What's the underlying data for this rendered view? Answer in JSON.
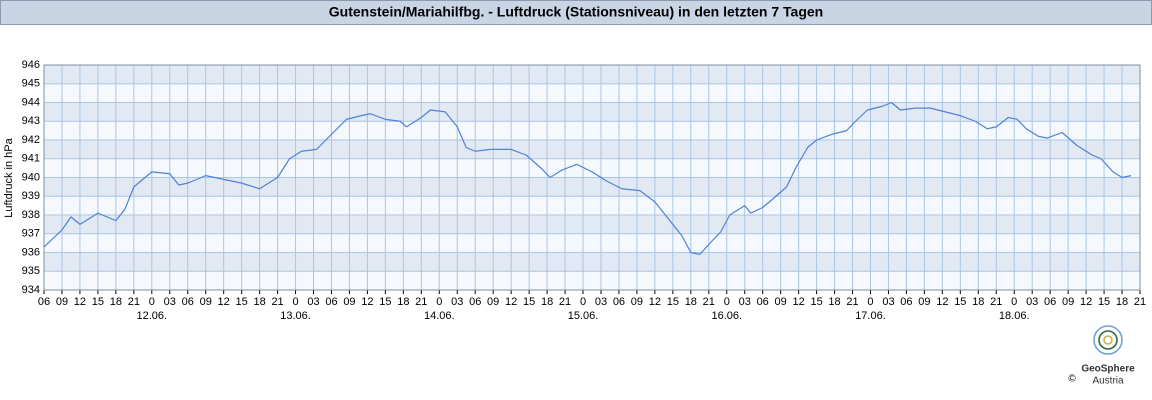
{
  "chart_data": {
    "type": "line",
    "title": "Gutenstein/Mariahilfbg. - Luftdruck (Stationsniveau) in den letzten 7 Tagen",
    "y_label": "Luftdruck in hPa",
    "color": "#4f82d8",
    "grid": true,
    "x": [
      0,
      3,
      4.5,
      6,
      9,
      12,
      13.5,
      15,
      18,
      21,
      22.5,
      24,
      27,
      30,
      33,
      36,
      39,
      41,
      43,
      45.5,
      48,
      50.5,
      53,
      54.5,
      57,
      59.5,
      60.5,
      63,
      64.5,
      67,
      69,
      70.5,
      72,
      74.5,
      78,
      80.5,
      83,
      84.5,
      86.5,
      89,
      91.5,
      94,
      96.5,
      99.5,
      102,
      104.5,
      106.5,
      108,
      109.5,
      111.5,
      113,
      114.5,
      115.5,
      117,
      118,
      120,
      121.5,
      124,
      125.5,
      127.5,
      129,
      131.5,
      134,
      135.5,
      137.5,
      140,
      141.5,
      143,
      145.5,
      148,
      150.5,
      153,
      155.5,
      157.5,
      159,
      161,
      162.5,
      164,
      166,
      167.5,
      170,
      172.5,
      175,
      176.5,
      178.5,
      180,
      181.5
    ],
    "values": [
      936.3,
      937.2,
      937.9,
      937.5,
      938.1,
      937.7,
      938.3,
      939.5,
      940.3,
      940.2,
      939.6,
      939.7,
      940.1,
      939.9,
      939.7,
      939.4,
      940.0,
      941.0,
      941.4,
      941.5,
      942.3,
      943.1,
      943.3,
      943.4,
      943.1,
      943.0,
      942.7,
      943.2,
      943.6,
      943.5,
      942.7,
      941.6,
      941.4,
      941.5,
      941.5,
      941.2,
      940.5,
      940.0,
      940.4,
      940.7,
      940.3,
      939.8,
      939.4,
      939.3,
      938.7,
      937.7,
      936.9,
      936.0,
      935.9,
      936.6,
      937.1,
      938.0,
      938.2,
      938.5,
      938.1,
      938.4,
      938.8,
      939.5,
      940.5,
      941.6,
      942.0,
      942.3,
      942.5,
      943.0,
      943.6,
      943.8,
      944.0,
      943.6,
      943.7,
      943.7,
      943.5,
      943.3,
      943.0,
      942.6,
      942.7,
      943.2,
      943.1,
      942.6,
      942.2,
      942.1,
      942.4,
      941.7,
      941.2,
      941.0,
      940.3,
      940.0,
      940.1
    ],
    "xlim": [
      0,
      183
    ],
    "ylim": [
      934,
      946
    ],
    "yticks": [
      934,
      935,
      936,
      937,
      938,
      939,
      940,
      941,
      942,
      943,
      944,
      945,
      946
    ],
    "xticks": [
      {
        "value": 0,
        "label": "06"
      },
      {
        "value": 3,
        "label": "09"
      },
      {
        "value": 6,
        "label": "12"
      },
      {
        "value": 9,
        "label": "15"
      },
      {
        "value": 12,
        "label": "18"
      },
      {
        "value": 15,
        "label": "21"
      },
      {
        "value": 18,
        "label": "0"
      },
      {
        "value": 21,
        "label": "03"
      },
      {
        "value": 24,
        "label": "06"
      },
      {
        "value": 27,
        "label": "09"
      },
      {
        "value": 30,
        "label": "12"
      },
      {
        "value": 33,
        "label": "15"
      },
      {
        "value": 36,
        "label": "18"
      },
      {
        "value": 39,
        "label": "21"
      },
      {
        "value": 42,
        "label": "0"
      },
      {
        "value": 45,
        "label": "03"
      },
      {
        "value": 48,
        "label": "06"
      },
      {
        "value": 51,
        "label": "09"
      },
      {
        "value": 54,
        "label": "12"
      },
      {
        "value": 57,
        "label": "15"
      },
      {
        "value": 60,
        "label": "18"
      },
      {
        "value": 63,
        "label": "21"
      },
      {
        "value": 66,
        "label": "0"
      },
      {
        "value": 69,
        "label": "03"
      },
      {
        "value": 72,
        "label": "06"
      },
      {
        "value": 75,
        "label": "09"
      },
      {
        "value": 78,
        "label": "12"
      },
      {
        "value": 81,
        "label": "15"
      },
      {
        "value": 84,
        "label": "18"
      },
      {
        "value": 87,
        "label": "21"
      },
      {
        "value": 90,
        "label": "0"
      },
      {
        "value": 93,
        "label": "03"
      },
      {
        "value": 96,
        "label": "06"
      },
      {
        "value": 99,
        "label": "09"
      },
      {
        "value": 102,
        "label": "12"
      },
      {
        "value": 105,
        "label": "15"
      },
      {
        "value": 108,
        "label": "18"
      },
      {
        "value": 111,
        "label": "21"
      },
      {
        "value": 114,
        "label": "0"
      },
      {
        "value": 117,
        "label": "03"
      },
      {
        "value": 120,
        "label": "06"
      },
      {
        "value": 123,
        "label": "09"
      },
      {
        "value": 126,
        "label": "12"
      },
      {
        "value": 129,
        "label": "15"
      },
      {
        "value": 132,
        "label": "18"
      },
      {
        "value": 135,
        "label": "21"
      },
      {
        "value": 138,
        "label": "0"
      },
      {
        "value": 141,
        "label": "03"
      },
      {
        "value": 144,
        "label": "06"
      },
      {
        "value": 147,
        "label": "09"
      },
      {
        "value": 150,
        "label": "12"
      },
      {
        "value": 153,
        "label": "15"
      },
      {
        "value": 156,
        "label": "18"
      },
      {
        "value": 159,
        "label": "21"
      },
      {
        "value": 162,
        "label": "0"
      },
      {
        "value": 165,
        "label": "03"
      },
      {
        "value": 168,
        "label": "06"
      },
      {
        "value": 171,
        "label": "09"
      },
      {
        "value": 174,
        "label": "12"
      },
      {
        "value": 177,
        "label": "15"
      },
      {
        "value": 180,
        "label": "18"
      },
      {
        "value": 183,
        "label": "21"
      }
    ],
    "date_labels": [
      {
        "value": 18,
        "label": "12.06."
      },
      {
        "value": 42,
        "label": "13.06."
      },
      {
        "value": 66,
        "label": "14.06."
      },
      {
        "value": 90,
        "label": "15.06."
      },
      {
        "value": 114,
        "label": "16.06."
      },
      {
        "value": 138,
        "label": "17.06."
      },
      {
        "value": 162,
        "label": "18.06."
      }
    ],
    "logo_name": "GeoSphere",
    "logo_sub": "Austria",
    "copyright": "©"
  }
}
